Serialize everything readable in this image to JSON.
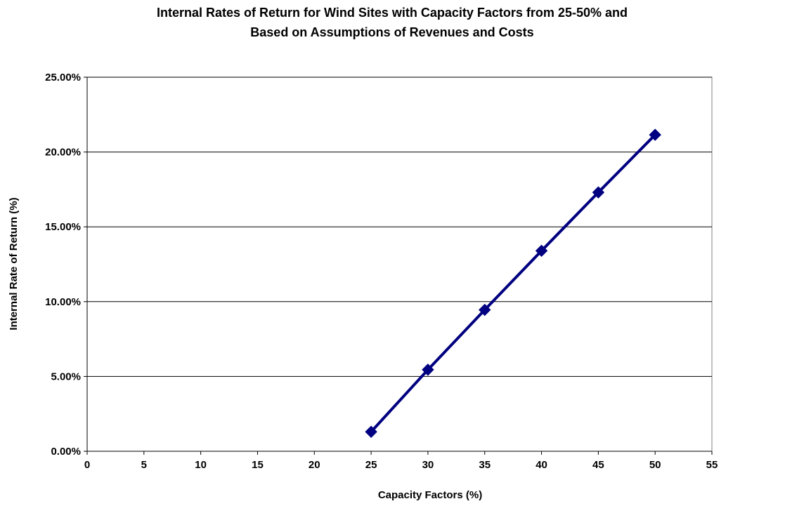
{
  "chart_data": {
    "type": "scatter",
    "title_lines": [
      "Internal Rates of Return for Wind Sites with Capacity Factors from 25-50% and",
      "Based on Assumptions of Revenues and Costs"
    ],
    "xlabel": "Capacity Factors (%)",
    "ylabel": "Internal Rate of Return (%)",
    "xlim": [
      0,
      55
    ],
    "ylim": [
      0,
      25
    ],
    "x_ticks": [
      "0",
      "5",
      "10",
      "15",
      "20",
      "25",
      "30",
      "35",
      "40",
      "45",
      "50",
      "55"
    ],
    "y_ticks": [
      "0.00%",
      "5.00%",
      "10.00%",
      "15.00%",
      "20.00%",
      "25.00%"
    ],
    "grid": "horizontal",
    "legend": "none",
    "series": [
      {
        "x": [
          25,
          30,
          35,
          40,
          45,
          50
        ],
        "y": [
          1.3,
          5.45,
          9.45,
          13.4,
          17.3,
          21.15
        ],
        "color": "#000080",
        "marker": "diamond",
        "line": "connected"
      }
    ]
  }
}
